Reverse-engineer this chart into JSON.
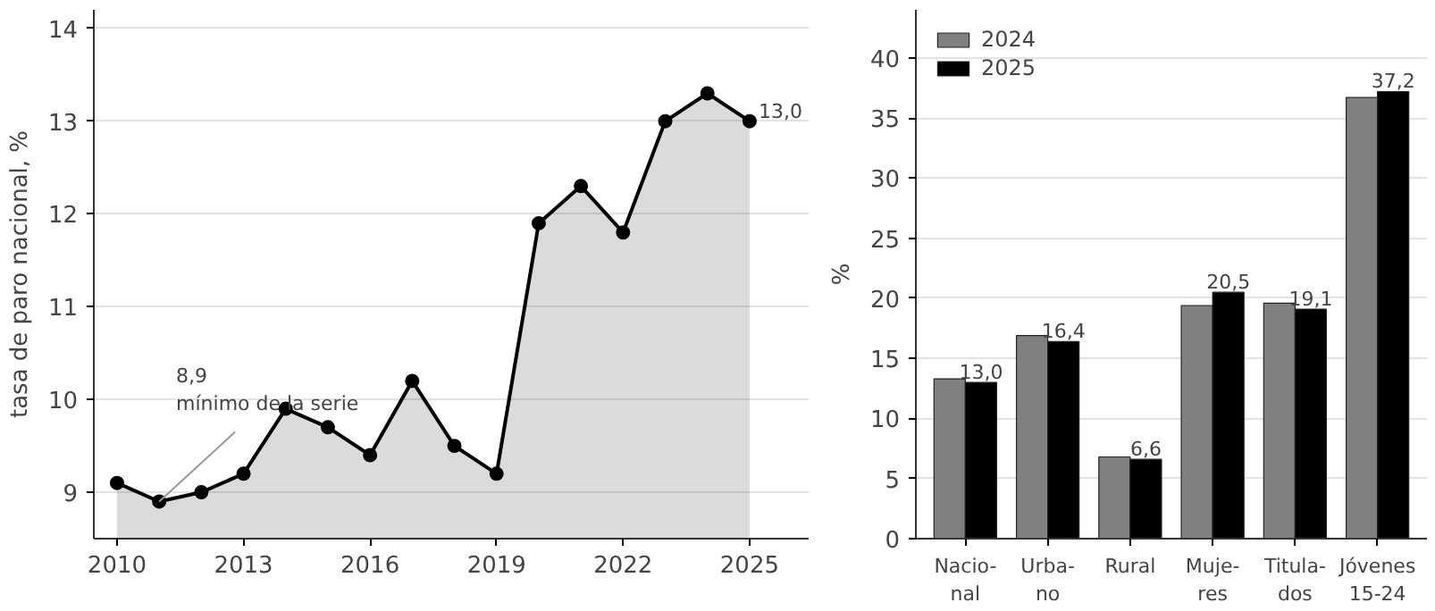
{
  "chart_data": [
    {
      "type": "area",
      "ylabel": "tasa de paro nacional, %",
      "x": [
        2010,
        2011,
        2012,
        2013,
        2014,
        2015,
        2016,
        2017,
        2018,
        2019,
        2020,
        2021,
        2022,
        2023,
        2024,
        2025
      ],
      "series": [
        {
          "color": "#000000",
          "values": [
            9.1,
            8.9,
            9.0,
            9.2,
            9.9,
            9.7,
            9.4,
            10.2,
            9.5,
            9.2,
            11.9,
            12.3,
            11.8,
            13.0,
            13.3,
            13.0
          ]
        }
      ],
      "marker": "circle",
      "line_style": "solid",
      "xlim": [
        2009.45,
        2026.4
      ],
      "ylim": [
        8.5,
        14.2
      ],
      "xticks": [
        2010,
        2013,
        2016,
        2019,
        2022,
        2025
      ],
      "yticks": [
        9,
        10,
        11,
        12,
        13,
        14
      ],
      "grid": "y",
      "annotations": [
        {
          "text": "8,9\nmínimo de la serie",
          "x": 2011,
          "y": 8.9
        },
        {
          "text": "13,0",
          "x": 2025,
          "y": 13.0
        }
      ]
    },
    {
      "type": "bar",
      "ylabel": "%",
      "categories": [
        "Nacio-\nnal",
        "Urba-\nno",
        "Rural",
        "Muje-\nres",
        "Titula-\ndos",
        "Jóvenes\n15-24"
      ],
      "series": [
        {
          "name": "2024",
          "color": "#808080",
          "values": [
            13.3,
            16.9,
            6.8,
            19.4,
            19.6,
            36.7
          ]
        },
        {
          "name": "2025",
          "color": "#000000",
          "values": [
            13.0,
            16.4,
            6.6,
            20.5,
            19.1,
            37.2
          ],
          "value_labels": [
            "13,0",
            "16,4",
            "6,6",
            "20,5",
            "19,1",
            "37,2"
          ]
        }
      ],
      "ylim": [
        0,
        44
      ],
      "yticks": [
        0,
        5,
        10,
        15,
        20,
        25,
        30,
        35,
        40
      ],
      "grid": "y",
      "legend": "top left"
    }
  ]
}
